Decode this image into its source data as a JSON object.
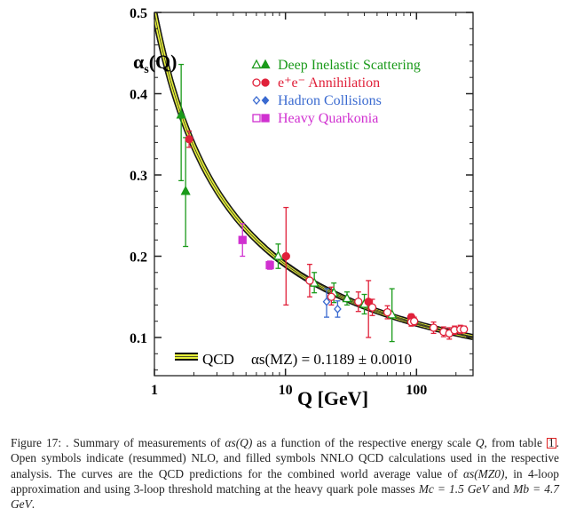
{
  "chart_data": {
    "type": "scatter",
    "title": "",
    "xlabel": "Q [GeV]",
    "ylabel": "αs(Q)",
    "xscale": "log",
    "xlim": [
      1,
      270
    ],
    "ylim": [
      0.053,
      0.5
    ],
    "xticks": [
      "1",
      "10",
      "100"
    ],
    "yticks": [
      "0.1",
      "0.2",
      "0.3",
      "0.4",
      "0.5"
    ],
    "grid": false,
    "legend_position": "top-right",
    "legend": [
      {
        "label": "Deep Inelastic Scattering",
        "color": "#1a9a1a",
        "marker": "triangle"
      },
      {
        "label": "e⁺e⁻ Annihilation",
        "color": "#e0213a",
        "marker": "circle"
      },
      {
        "label": "Hadron Collisions",
        "color": "#3a6ad0",
        "marker": "diamond"
      },
      {
        "label": "Heavy Quarkonia",
        "color": "#d030d0",
        "marker": "square"
      }
    ],
    "qcd_legend": {
      "label": "QCD",
      "formula": "αs(MZ) = 0.1189 ± 0.0010",
      "alpha_s_mz": 0.1189,
      "uncertainty": 0.001,
      "band_color": "#e6ef3a"
    },
    "series": [
      {
        "name": "Deep Inelastic Scattering",
        "color": "#1a9a1a",
        "marker": "triangle",
        "points": [
          {
            "q": 1.6,
            "a": 0.374,
            "lo": 0.293,
            "hi": 0.436,
            "filled": true
          },
          {
            "q": 1.73,
            "a": 0.28,
            "lo": 0.212,
            "hi": 0.346,
            "filled": true
          },
          {
            "q": 8.8,
            "a": 0.2,
            "lo": 0.185,
            "hi": 0.215,
            "filled": false
          },
          {
            "q": 16.6,
            "a": 0.167,
            "lo": 0.155,
            "hi": 0.18,
            "filled": false
          },
          {
            "q": 23.4,
            "a": 0.155,
            "lo": 0.143,
            "hi": 0.167,
            "filled": false
          },
          {
            "q": 29.5,
            "a": 0.148,
            "lo": 0.14,
            "hi": 0.156,
            "filled": false
          },
          {
            "q": 40,
            "a": 0.141,
            "lo": 0.129,
            "hi": 0.153,
            "filled": false
          },
          {
            "q": 65,
            "a": 0.128,
            "lo": 0.095,
            "hi": 0.16,
            "filled": false
          }
        ]
      },
      {
        "name": "e⁺e⁻ Annihilation",
        "color": "#e0213a",
        "marker": "circle",
        "points": [
          {
            "q": 1.84,
            "a": 0.344,
            "lo": 0.334,
            "hi": 0.354,
            "filled": true
          },
          {
            "q": 10.1,
            "a": 0.2,
            "lo": 0.14,
            "hi": 0.26,
            "filled": true
          },
          {
            "q": 15.3,
            "a": 0.17,
            "lo": 0.15,
            "hi": 0.19,
            "filled": false
          },
          {
            "q": 22.4,
            "a": 0.15,
            "lo": 0.14,
            "hi": 0.162,
            "filled": false
          },
          {
            "q": 36,
            "a": 0.144,
            "lo": 0.132,
            "hi": 0.156,
            "filled": false
          },
          {
            "q": 43,
            "a": 0.144,
            "lo": 0.1,
            "hi": 0.17,
            "filled": true
          },
          {
            "q": 46,
            "a": 0.137,
            "lo": 0.127,
            "hi": 0.147,
            "filled": false
          },
          {
            "q": 60,
            "a": 0.131,
            "lo": 0.123,
            "hi": 0.139,
            "filled": false
          },
          {
            "q": 91.2,
            "a": 0.125,
            "lo": 0.121,
            "hi": 0.129,
            "filled": true
          },
          {
            "q": 91.2,
            "a": 0.119,
            "lo": 0.114,
            "hi": 0.124,
            "filled": false
          },
          {
            "q": 96,
            "a": 0.12,
            "lo": 0.115,
            "hi": 0.125,
            "filled": false
          },
          {
            "q": 135,
            "a": 0.112,
            "lo": 0.105,
            "hi": 0.119,
            "filled": false
          },
          {
            "q": 161,
            "a": 0.107,
            "lo": 0.101,
            "hi": 0.113,
            "filled": false
          },
          {
            "q": 178,
            "a": 0.105,
            "lo": 0.098,
            "hi": 0.112,
            "filled": false
          },
          {
            "q": 195,
            "a": 0.109,
            "lo": 0.104,
            "hi": 0.114,
            "filled": false
          },
          {
            "q": 216,
            "a": 0.11,
            "lo": 0.105,
            "hi": 0.115,
            "filled": false
          },
          {
            "q": 230,
            "a": 0.11,
            "lo": 0.106,
            "hi": 0.114,
            "filled": false
          }
        ]
      },
      {
        "name": "Hadron Collisions",
        "color": "#3a6ad0",
        "marker": "diamond",
        "points": [
          {
            "q": 20.6,
            "a": 0.144,
            "lo": 0.125,
            "hi": 0.16,
            "filled": false
          },
          {
            "q": 25,
            "a": 0.135,
            "lo": 0.125,
            "hi": 0.145,
            "filled": false
          }
        ]
      },
      {
        "name": "Heavy Quarkonia",
        "color": "#d030d0",
        "marker": "square",
        "points": [
          {
            "q": 4.7,
            "a": 0.22,
            "lo": 0.2,
            "hi": 0.24,
            "filled": true
          },
          {
            "q": 7.6,
            "a": 0.189,
            "lo": 0.184,
            "hi": 0.194,
            "filled": true
          }
        ]
      }
    ]
  },
  "caption": {
    "lead": "Figure 17: . Summary of measurements of ",
    "alpha_q": "αs(Q)",
    "mid1": " as a function of the respective energy scale ",
    "q": "Q",
    "mid2": ", from table ",
    "ref": "1",
    "mid3": ". Open symbols indicate (resummed) NLO, and filled symbols NNLO QCD calculations used in the respective analysis. The curves are the QCD predictions for the combined world average value of ",
    "alpha_mz": "αs(MZ0)",
    "mid4": ", in 4-loop approximation and using 3-loop threshold matching at the heavy quark pole masses ",
    "mc": "Mc = 1.5 GeV",
    "and": " and ",
    "mb": "Mb = 4.7 GeV",
    "end": "."
  }
}
